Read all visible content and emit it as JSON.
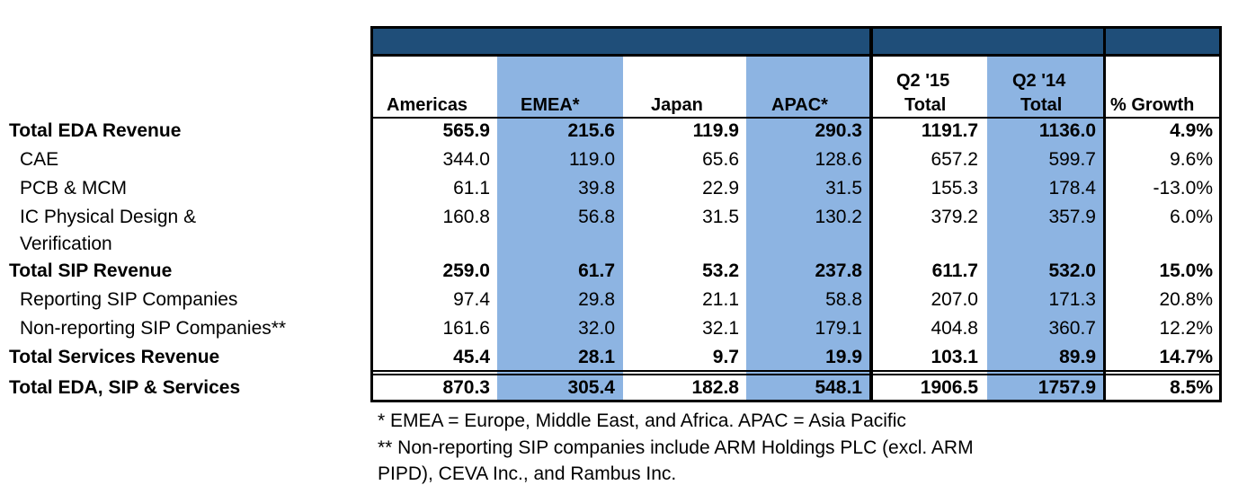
{
  "columns": [
    {
      "key": "americas",
      "label": "Americas"
    },
    {
      "key": "emea",
      "label": "EMEA*"
    },
    {
      "key": "japan",
      "label": "Japan"
    },
    {
      "key": "apac",
      "label": "APAC*"
    },
    {
      "key": "q2_15",
      "label_line1": "Q2 '15",
      "label_line2": "Total"
    },
    {
      "key": "q2_14",
      "label_line1": "Q2 '14",
      "label_line2": "Total"
    },
    {
      "key": "growth",
      "label": "% Growth"
    }
  ],
  "rows": [
    {
      "label": "Total EDA Revenue",
      "bold": true,
      "values": [
        "565.9",
        "215.6",
        "119.9",
        "290.3",
        "1191.7",
        "1136.0",
        "4.9%"
      ]
    },
    {
      "label": "CAE",
      "bold": false,
      "values": [
        "344.0",
        "119.0",
        "65.6",
        "128.6",
        "657.2",
        "599.7",
        "9.6%"
      ]
    },
    {
      "label": "PCB & MCM",
      "bold": false,
      "values": [
        "61.1",
        "39.8",
        "22.9",
        "31.5",
        "155.3",
        "178.4",
        "-13.0%"
      ]
    },
    {
      "label": "IC Physical Design &",
      "label_line2": "Verification",
      "bold": false,
      "values": [
        "160.8",
        "56.8",
        "31.5",
        "130.2",
        "379.2",
        "357.9",
        "6.0%"
      ]
    },
    {
      "label": "Total SIP Revenue",
      "bold": true,
      "values": [
        "259.0",
        "61.7",
        "53.2",
        "237.8",
        "611.7",
        "532.0",
        "15.0%"
      ]
    },
    {
      "label": "Reporting SIP Companies",
      "bold": false,
      "values": [
        "97.4",
        "29.8",
        "21.1",
        "58.8",
        "207.0",
        "171.3",
        "20.8%"
      ]
    },
    {
      "label": "Non-reporting SIP Companies**",
      "bold": false,
      "values": [
        "161.6",
        "32.0",
        "32.1",
        "179.1",
        "404.8",
        "360.7",
        "12.2%"
      ]
    },
    {
      "label": "Total Services Revenue",
      "bold": true,
      "values": [
        "45.4",
        "28.1",
        "9.7",
        "19.9",
        "103.1",
        "89.9",
        "14.7%"
      ]
    },
    {
      "label": "Total EDA, SIP & Services",
      "bold": true,
      "values": [
        "870.3",
        "305.4",
        "182.8",
        "548.1",
        "1906.5",
        "1757.9",
        "8.5%"
      ]
    }
  ],
  "notes": {
    "line1": "* EMEA = Europe, Middle East, and Africa. APAC = Asia Pacific",
    "line2": "** Non-reporting SIP companies include ARM Holdings PLC (excl. ARM",
    "line3": "PIPD), CEVA Inc., and Rambus Inc."
  },
  "colors": {
    "header_band": "#1f4e79",
    "column_shade": "#8db4e2"
  }
}
